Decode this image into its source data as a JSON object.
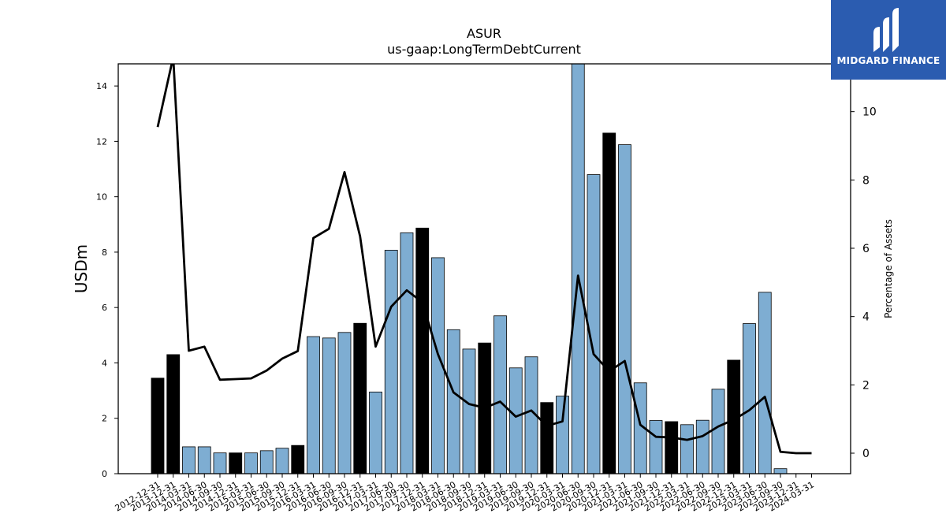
{
  "chart_data": {
    "type": "bar",
    "title": "ASUR",
    "subtitle": "us-gaap:LongTermDebtCurrent",
    "ylabel": "USDm",
    "y2label": "Percentage of Assets",
    "ylim": [
      0,
      14.8
    ],
    "y2lim": [
      -0.6,
      11.4
    ],
    "yticks": [
      0,
      2,
      4,
      6,
      8,
      10,
      12,
      14
    ],
    "y2ticks": [
      0,
      2,
      4,
      6,
      8,
      10
    ],
    "categories": [
      "2012-12-31",
      "2013-12-31",
      "2014-03-31",
      "2014-06-30",
      "2014-09-30",
      "2014-12-31",
      "2015-03-31",
      "2015-06-30",
      "2015-09-30",
      "2015-12-31",
      "2016-03-31",
      "2016-06-30",
      "2016-09-30",
      "2016-12-31",
      "2017-03-31",
      "2017-06-30",
      "2017-09-30",
      "2017-12-31",
      "2018-03-31",
      "2018-06-30",
      "2018-09-30",
      "2018-12-31",
      "2019-03-31",
      "2019-06-30",
      "2019-09-30",
      "2019-12-31",
      "2020-03-31",
      "2020-06-30",
      "2020-09-30",
      "2020-12-31",
      "2021-03-31",
      "2021-06-30",
      "2021-09-30",
      "2021-12-31",
      "2022-03-31",
      "2022-06-30",
      "2022-09-30",
      "2022-12-31",
      "2023-03-31",
      "2023-06-30",
      "2023-09-30",
      "2023-12-31",
      "2024-03-31"
    ],
    "series": [
      {
        "kind": "bar",
        "values": [
          3.45,
          4.3,
          0.97,
          0.97,
          0.75,
          0.75,
          0.75,
          0.83,
          0.92,
          1.02,
          4.95,
          4.9,
          5.1,
          5.43,
          2.95,
          8.07,
          8.7,
          8.87,
          7.8,
          5.2,
          4.5,
          4.72,
          5.7,
          3.82,
          4.22,
          2.57,
          2.8,
          14.8,
          10.8,
          12.3,
          11.88,
          3.28,
          1.92,
          1.88,
          1.77,
          1.93,
          3.05,
          4.1,
          5.42,
          6.55,
          0.18,
          0,
          0
        ],
        "highlight": [
          true,
          true,
          false,
          false,
          false,
          true,
          false,
          false,
          false,
          true,
          false,
          false,
          false,
          true,
          false,
          false,
          false,
          true,
          false,
          false,
          false,
          true,
          false,
          false,
          false,
          true,
          false,
          false,
          false,
          true,
          false,
          false,
          false,
          true,
          false,
          false,
          false,
          true,
          false,
          false,
          false,
          false,
          false
        ],
        "color": "#7eadd2",
        "highlight_color": "#000000"
      },
      {
        "kind": "line",
        "axis": "right",
        "values": [
          9.55,
          11.6,
          3.0,
          3.12,
          2.15,
          2.17,
          2.19,
          2.42,
          2.77,
          2.99,
          6.3,
          6.57,
          8.23,
          6.35,
          3.12,
          4.29,
          4.77,
          4.42,
          2.9,
          1.78,
          1.44,
          1.33,
          1.51,
          1.07,
          1.25,
          0.8,
          0.93,
          5.2,
          2.9,
          2.4,
          2.7,
          0.83,
          0.48,
          0.46,
          0.39,
          0.5,
          0.78,
          0.98,
          1.26,
          1.65,
          0.04,
          0.0,
          0.0
        ],
        "color": "#000000"
      }
    ]
  },
  "logo": {
    "text": "MIDGARD FINANCE",
    "color": "#2b5cb0"
  }
}
